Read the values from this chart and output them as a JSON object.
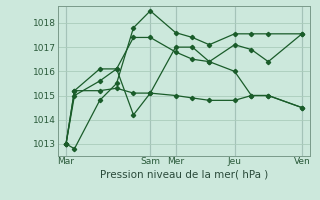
{
  "background_color": "#cce8dc",
  "grid_color": "#aaccbb",
  "line_color": "#1a5c2a",
  "vline_color": "#8899aa",
  "ylabel_ticks": [
    1013,
    1014,
    1015,
    1016,
    1017,
    1018
  ],
  "xlabel": "Pression niveau de la mer( hPa )",
  "x_tick_labels": [
    "Mar",
    "Sam",
    "Mer",
    "Jeu",
    "Ven"
  ],
  "x_tick_positions": [
    0,
    5,
    6.5,
    10,
    14
  ],
  "vline_positions": [
    0,
    5,
    6.5,
    10,
    14
  ],
  "lines": [
    {
      "x": [
        0,
        0.5,
        2,
        3,
        4,
        5,
        6.5,
        7.5,
        8.5,
        10,
        11,
        12,
        14
      ],
      "y": [
        1013.0,
        1012.8,
        1014.8,
        1015.5,
        1017.8,
        1018.5,
        1017.6,
        1017.4,
        1017.1,
        1017.55,
        1017.55,
        1017.55,
        1017.55
      ]
    },
    {
      "x": [
        0,
        0.5,
        2,
        3,
        4,
        5,
        6.5,
        7.5,
        8.5,
        10,
        11,
        12,
        14
      ],
      "y": [
        1013.0,
        1015.0,
        1015.6,
        1016.1,
        1017.4,
        1017.4,
        1016.8,
        1016.5,
        1016.4,
        1017.1,
        1016.9,
        1016.4,
        1017.55
      ]
    },
    {
      "x": [
        0,
        0.5,
        2,
        3,
        4,
        5,
        6.5,
        7.5,
        8.5,
        10,
        11,
        12,
        14
      ],
      "y": [
        1013.0,
        1015.2,
        1015.2,
        1015.3,
        1015.1,
        1015.1,
        1015.0,
        1014.9,
        1014.8,
        1014.8,
        1015.0,
        1015.0,
        1014.5
      ]
    },
    {
      "x": [
        0,
        0.5,
        2,
        3,
        4,
        5,
        6.5,
        7.5,
        8.5,
        10,
        11,
        12,
        14
      ],
      "y": [
        1013.0,
        1015.2,
        1016.1,
        1016.1,
        1014.2,
        1015.1,
        1017.0,
        1017.0,
        1016.4,
        1016.0,
        1015.0,
        1015.0,
        1014.5
      ]
    }
  ],
  "xlim": [
    -0.5,
    14.5
  ],
  "ylim": [
    1012.5,
    1018.7
  ],
  "figsize": [
    3.2,
    2.0
  ],
  "dpi": 100,
  "tick_fontsize": 6.5,
  "xlabel_fontsize": 7.5
}
